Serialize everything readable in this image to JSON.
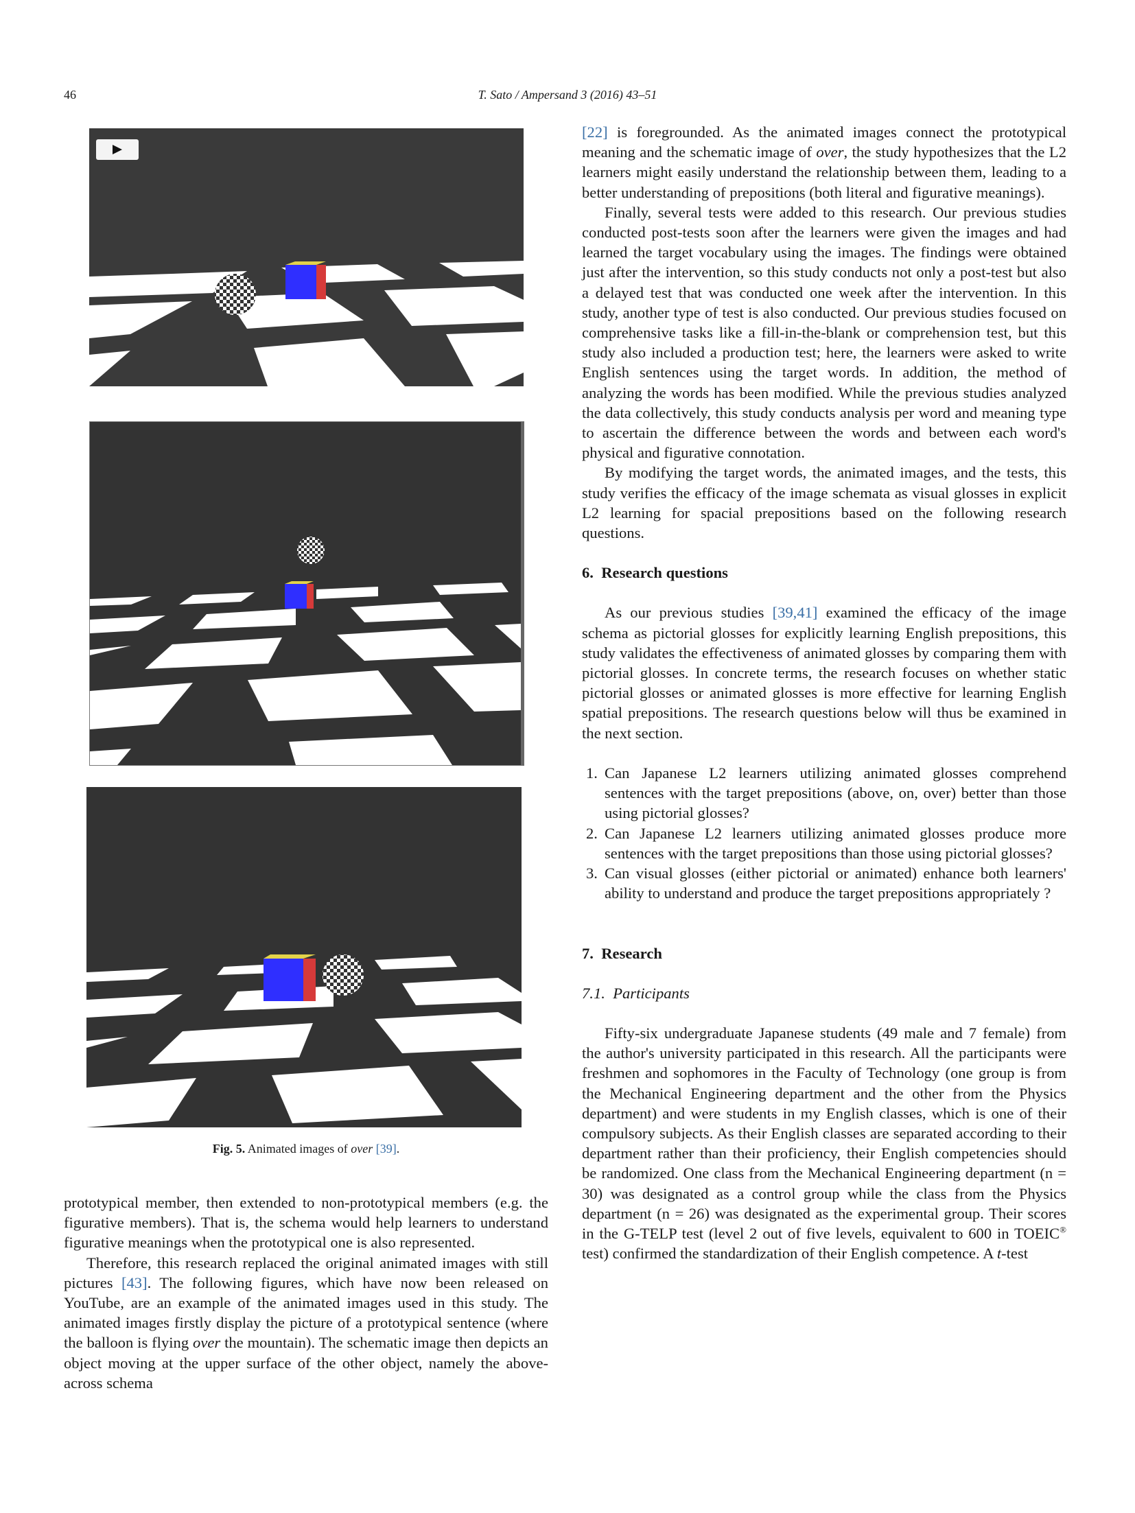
{
  "header": {
    "page_number": "46",
    "journal_reference": "T. Sato / Ampersand 3 (2016) 43–51"
  },
  "figure": {
    "label": "Fig. 5.",
    "caption_prefix": " Animated images of ",
    "caption_italic": "over",
    "caption_space": " ",
    "caption_ref": "[39]",
    "caption_end": ".",
    "colors": {
      "floor_dark": "#3a3a3a",
      "floor_light": "#ffffff",
      "cube_blue": "#2f2fff",
      "cube_red": "#d63a3a",
      "cube_top": "#e3d34a"
    }
  },
  "left_column": {
    "p1": "prototypical member, then extended to non-prototypical members (e.g. the figurative members). That is, the schema would help learners to understand figurative meanings when the prototypical one is also represented.",
    "p2_a": "Therefore, this research replaced the original animated images with still pictures ",
    "p2_ref": "[43]",
    "p2_b": ". The following figures, which have now been released on YouTube, are an example of the animated images used in this study. The animated images firstly display the picture of a prototypical sentence (where the balloon is flying ",
    "p2_italic": "over",
    "p2_c": " the mountain). The schematic image then depicts an object moving at the upper surface of the other object, namely the above-across schema"
  },
  "right_column": {
    "p1_ref": "[22]",
    "p1_a": " is foregrounded. As the animated images connect the prototypical meaning and the schematic image of ",
    "p1_italic": "over",
    "p1_b": ", the study hypothesizes that the L2 learners might easily understand the relationship between them, leading to a better understanding of prepositions (both literal and figurative meanings).",
    "p2": "Finally, several tests were added to this research. Our previous studies conducted post-tests soon after the learners were given the images and had learned the target vocabulary using the images. The findings were obtained just after the intervention, so this study conducts not only a post-test but also a delayed test that was conducted one week after the intervention. In this study, another type of test is also conducted. Our previous studies focused on comprehensive tasks like a fill-in-the-blank or comprehension test, but this study also included a production test; here, the learners were asked to write English sentences using the target words. In addition, the method of analyzing the words has been modified. While the previous studies analyzed the data collectively, this study conducts analysis per word and meaning type to ascertain the difference between the words and between each word's physical and figurative connotation.",
    "p3": "By modifying the target words, the animated images, and the tests, this study verifies the efficacy of the image schemata as visual glosses in explicit L2 learning for spacial prepositions based on the following research questions.",
    "section6_heading": "6. Research questions",
    "s6_a": "As our previous studies ",
    "s6_ref": "[39,41]",
    "s6_b": " examined the efficacy of the image schema as pictorial glosses for explicitly learning English prepositions, this study validates the effectiveness of animated glosses by comparing them with pictorial glosses. In concrete terms, the research focuses on whether static pictorial glosses or animated glosses is more effective for learning English spatial prepositions. The research questions below will thus be examined in the next section.",
    "questions": [
      {
        "num": "1.",
        "text": "Can Japanese L2 learners utilizing animated glosses comprehend sentences with the target prepositions (above, on, over) better than those using pictorial glosses?"
      },
      {
        "num": "2.",
        "text": "Can Japanese L2 learners utilizing animated glosses produce more sentences with the target prepositions than those using pictorial glosses?"
      },
      {
        "num": "3.",
        "text": "Can visual glosses (either pictorial or animated) enhance both learners' ability to understand and produce the target prepositions appropriately ?"
      }
    ],
    "section7_heading": "7. Research",
    "subsection71_heading": "7.1. Participants",
    "s71_a": "Fifty-six undergraduate Japanese students (49 male and 7 female) from the author's university participated in this research. All the participants were freshmen and sophomores in the Faculty of Technology (one group is from the Mechanical Engineering department and the other from the Physics department) and were students in my English classes, which is one of their compulsory subjects. As their English classes are separated according to their department rather than their proficiency, their English competencies should be randomized. One class from the Mechanical Engineering department (n = 30) was designated as a control group while the class from the Physics department (n = 26) was designated as the experimental group. Their scores in the G-TELP test (level 2 out of five levels, equivalent to 600 in TOEIC",
    "s71_reg": "®",
    "s71_b": " test) confirmed the standardization of their English competence. A ",
    "s71_italic": "t",
    "s71_c": "-test"
  }
}
